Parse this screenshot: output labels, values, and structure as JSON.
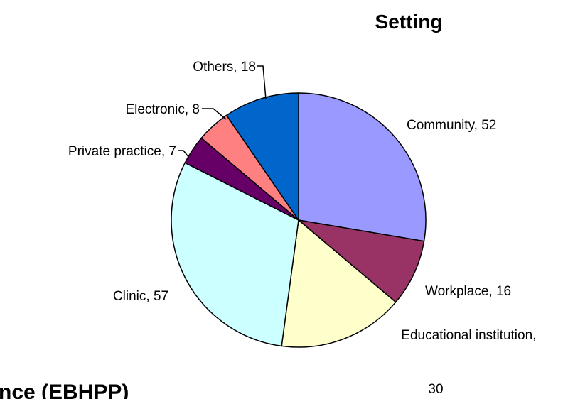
{
  "chart_data": {
    "type": "pie",
    "title": "Setting",
    "categories": [
      "Community",
      "Workplace",
      "Educational institution",
      "Clinic",
      "Private practice",
      "Electronic",
      "Others"
    ],
    "values": [
      52,
      16,
      30,
      57,
      7,
      8,
      18
    ],
    "colors": [
      "#9999ff",
      "#993366",
      "#ffffcc",
      "#ccffff",
      "#660066",
      "#ff8080",
      "#0066cc"
    ]
  },
  "footer_text": "nce (EBHPP)"
}
